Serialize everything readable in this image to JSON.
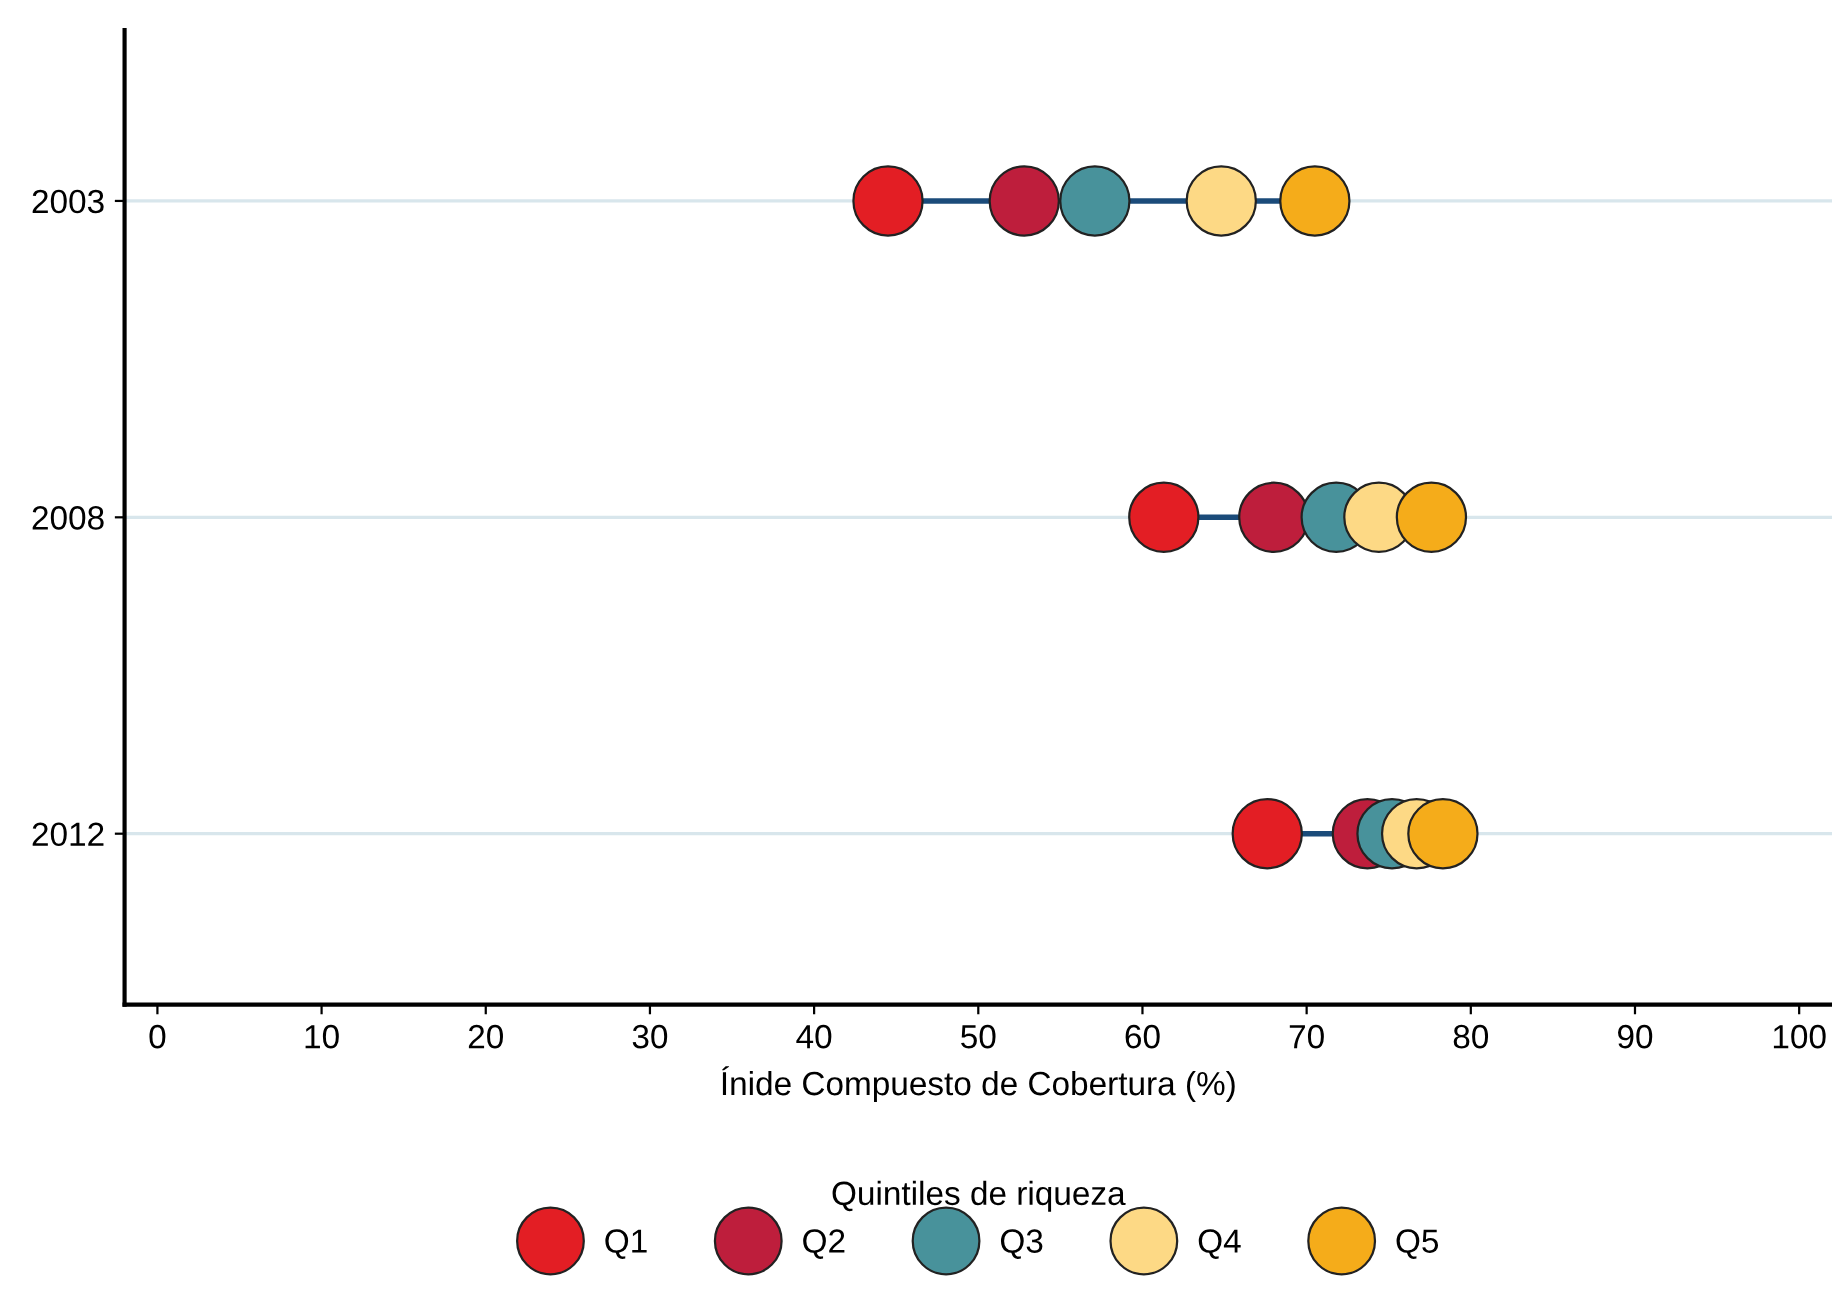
{
  "chart_data": {
    "type": "scatter",
    "orientation": "horizontal",
    "categories": [
      "2003",
      "2008",
      "2012"
    ],
    "series": [
      {
        "name": "Q1",
        "color": "#e31e24",
        "values": [
          44.5,
          61.3,
          67.6
        ]
      },
      {
        "name": "Q2",
        "color": "#be1e3c",
        "values": [
          52.8,
          68.0,
          73.7
        ]
      },
      {
        "name": "Q3",
        "color": "#48929b",
        "values": [
          57.1,
          71.8,
          75.2
        ]
      },
      {
        "name": "Q4",
        "color": "#fdd985",
        "values": [
          64.8,
          74.4,
          76.7
        ]
      },
      {
        "name": "Q5",
        "color": "#f5ac1a",
        "values": [
          70.5,
          77.6,
          78.3
        ]
      }
    ],
    "xlabel": "Ínide Compuesto de Cobertura (%)",
    "legend_title": "Quintiles de riqueza",
    "xlim": [
      -2,
      102
    ],
    "xticks": [
      0,
      10,
      20,
      30,
      40,
      50,
      60,
      70,
      80,
      90,
      100
    ],
    "grid": "y",
    "legend": "bottom",
    "marker": "circle"
  }
}
